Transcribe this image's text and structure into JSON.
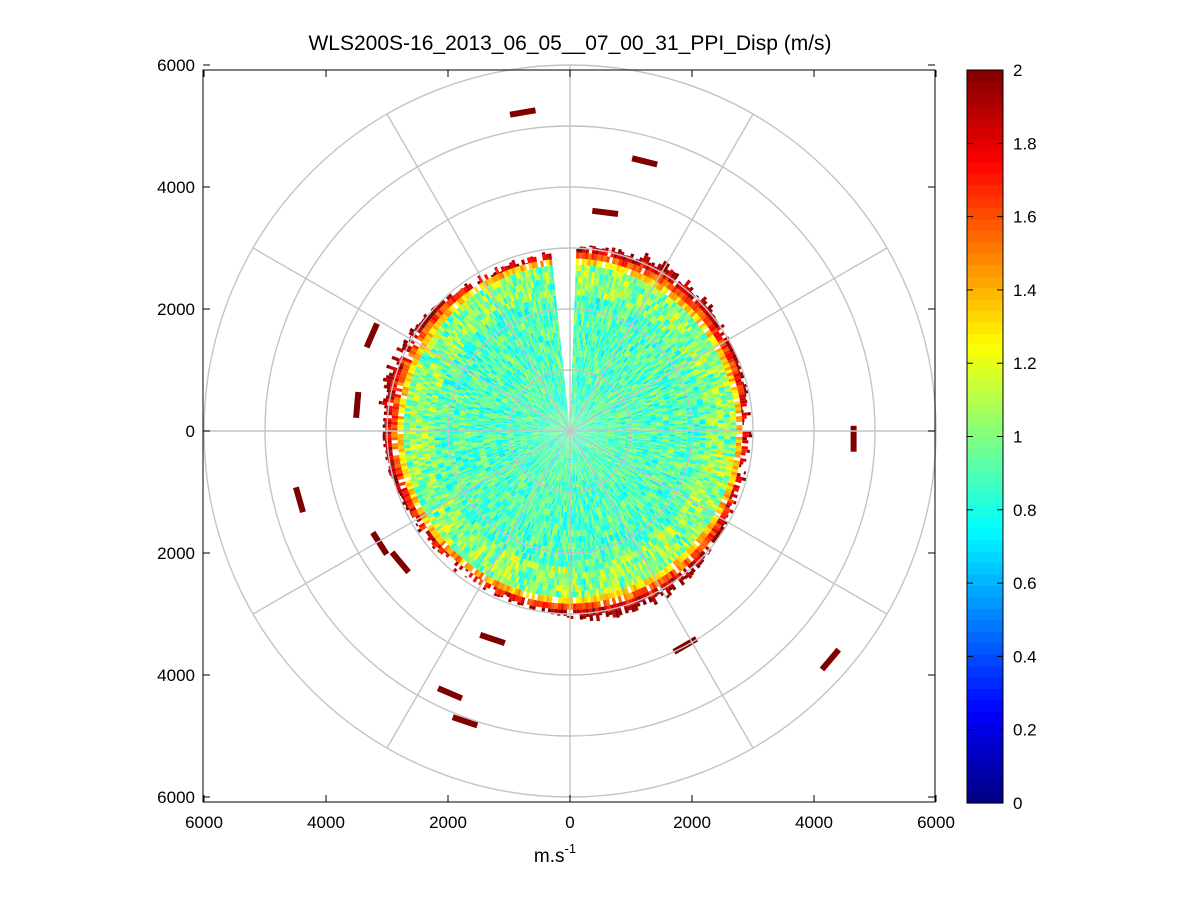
{
  "chart_data": {
    "type": "heatmap",
    "subtype": "polar-ppi",
    "title": "WLS200S-16_2013_06_05__07_00_31_PPI_Disp (m/s)",
    "xlabel_base": "m.s",
    "xlabel_exp": "-1",
    "xlim": [
      -6000,
      6000
    ],
    "ylim": [
      -6000,
      6000
    ],
    "x_ticks": [
      {
        "v": -6000,
        "label": "6000"
      },
      {
        "v": -4000,
        "label": "4000"
      },
      {
        "v": -2000,
        "label": "2000"
      },
      {
        "v": 0,
        "label": "0"
      },
      {
        "v": 2000,
        "label": "2000"
      },
      {
        "v": 4000,
        "label": "4000"
      },
      {
        "v": 6000,
        "label": "6000"
      }
    ],
    "y_ticks": [
      {
        "v": 6000,
        "label": "6000"
      },
      {
        "v": 4000,
        "label": "4000"
      },
      {
        "v": 2000,
        "label": "2000"
      },
      {
        "v": 0,
        "label": "0"
      },
      {
        "v": -2000,
        "label": "2000"
      },
      {
        "v": -4000,
        "label": "4000"
      },
      {
        "v": -6000,
        "label": "6000"
      }
    ],
    "range_rings": [
      1000,
      2000,
      3000,
      4000,
      5000,
      6000
    ],
    "spoke_angles_deg": [
      0,
      30,
      60,
      90,
      120,
      150,
      180,
      210,
      240,
      270,
      300,
      330
    ],
    "data_extent": {
      "dense_radius_max": 2700,
      "edge_radius": [
        2800,
        3200
      ],
      "blank_sector_deg": [
        354,
        2
      ],
      "interior_value_range": [
        0.7,
        1.1
      ]
    },
    "far_returns": [
      {
        "x": -900,
        "y": 5200,
        "value": 2
      },
      {
        "x": 1100,
        "y": 4450,
        "value": 2
      },
      {
        "x": 450,
        "y": 3600,
        "value": 2
      },
      {
        "x": -3300,
        "y": 1450,
        "value": 2
      },
      {
        "x": -3500,
        "y": 300,
        "value": 2
      },
      {
        "x": 4650,
        "y": 0,
        "value": 2
      },
      {
        "x": -4400,
        "y": -1250,
        "value": 2
      },
      {
        "x": -3050,
        "y": -1950,
        "value": 2
      },
      {
        "x": -2700,
        "y": -2250,
        "value": 2
      },
      {
        "x": -1150,
        "y": -3450,
        "value": 2
      },
      {
        "x": 2000,
        "y": -3450,
        "value": 2
      },
      {
        "x": 4350,
        "y": -3650,
        "value": 2
      },
      {
        "x": -1850,
        "y": -4350,
        "value": 2
      },
      {
        "x": -1600,
        "y": -4800,
        "value": 2
      }
    ],
    "colorbar": {
      "min": 0,
      "max": 2,
      "colormap": "jet",
      "ticks": [
        {
          "v": 0,
          "label": "0"
        },
        {
          "v": 0.2,
          "label": "0.2"
        },
        {
          "v": 0.4,
          "label": "0.4"
        },
        {
          "v": 0.6,
          "label": "0.6"
        },
        {
          "v": 0.8,
          "label": "0.8"
        },
        {
          "v": 1.0,
          "label": "1"
        },
        {
          "v": 1.2,
          "label": "1.2"
        },
        {
          "v": 1.4,
          "label": "1.4"
        },
        {
          "v": 1.6,
          "label": "1.6"
        },
        {
          "v": 1.8,
          "label": "1.8"
        },
        {
          "v": 2.0,
          "label": "2"
        }
      ]
    }
  },
  "colors": {
    "grid": "#c4c4c4",
    "axis": "#000000",
    "background": "#ffffff"
  }
}
